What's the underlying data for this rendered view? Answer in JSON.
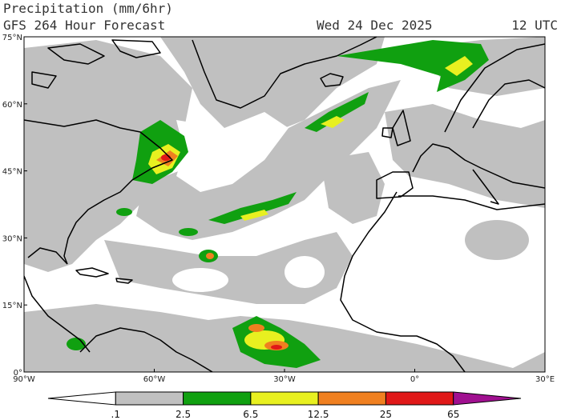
{
  "header": {
    "title": "Precipitation (mm/6hr)",
    "subtitle": "GFS 264 Hour Forecast",
    "valid": "Wed 24 Dec 2025",
    "time": "12 UTC"
  },
  "map": {
    "lat_labels": [
      "75°N",
      "60°N",
      "45°N",
      "30°N",
      "15°N",
      "0°"
    ],
    "lon_labels": [
      "90°W",
      "60°W",
      "30°W",
      "0°",
      "30°E"
    ]
  },
  "colorbar": {
    "labels": [
      ".1",
      "2.5",
      "6.5",
      "12.5",
      "25",
      "65"
    ],
    "colors": [
      "#ffffff",
      "#c0c0c0",
      "#10a010",
      "#e8f020",
      "#f08020",
      "#e01818",
      "#a01090"
    ]
  }
}
